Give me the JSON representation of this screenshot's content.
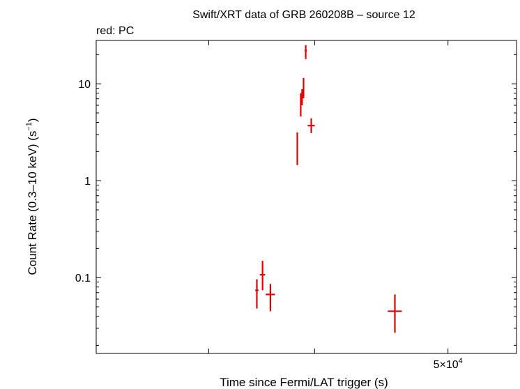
{
  "chart_data": {
    "type": "scatter",
    "title": "Swift/XRT data of GRB 260208B – source 12",
    "subtitle": "red: PC",
    "xlabel": "Time since Fermi/LAT trigger (s)",
    "ylabel": "Count Rate (0.3–10 keV) (s",
    "ylabel_sup": "−1",
    "ylabel_close": ")",
    "x_scale": "log",
    "y_scale": "log",
    "xlim": [
      13000,
      65000
    ],
    "ylim": [
      0.0165,
      28
    ],
    "x_tick_labels": [
      {
        "value": 50000,
        "label": "5×10",
        "sup": "4"
      }
    ],
    "x_minor_ticks": [
      20000,
      30000,
      50000
    ],
    "y_ticks": [
      {
        "value": 0.1,
        "label": "0.1"
      },
      {
        "value": 1,
        "label": "1"
      },
      {
        "value": 10,
        "label": "10"
      }
    ],
    "series": [
      {
        "color": "#e00000",
        "points": [
          {
            "x": 24050,
            "y": 0.074,
            "xerr": [
              150,
              150
            ],
            "yerr": [
              0.026,
              0.022
            ]
          },
          {
            "x": 24580,
            "y": 0.107,
            "xerr": [
              250,
              250
            ],
            "yerr": [
              0.033,
              0.042
            ]
          },
          {
            "x": 25330,
            "y": 0.067,
            "xerr": [
              450,
              450
            ],
            "yerr": [
              0.022,
              0.019
            ]
          },
          {
            "x": 28080,
            "y": 2.4,
            "xerr": [
              80,
              80
            ],
            "yerr": [
              0.95,
              0.75
            ]
          },
          {
            "x": 28450,
            "y": 6.4,
            "xerr": [
              60,
              60
            ],
            "yerr": [
              1.8,
              1.6
            ]
          },
          {
            "x": 28600,
            "y": 7.6,
            "xerr": [
              50,
              50
            ],
            "yerr": [
              1.6,
              1.2
            ]
          },
          {
            "x": 28760,
            "y": 9.1,
            "xerr": [
              50,
              50
            ],
            "yerr": [
              2.0,
              2.4
            ]
          },
          {
            "x": 29000,
            "y": 22,
            "xerr": [
              120,
              120
            ],
            "yerr": [
              4.0,
              3.0
            ]
          },
          {
            "x": 29620,
            "y": 3.7,
            "xerr": [
              400,
              400
            ],
            "yerr": [
              0.6,
              0.7
            ]
          },
          {
            "x": 40800,
            "y": 0.045,
            "xerr": [
              1100,
              1100
            ],
            "yerr": [
              0.018,
              0.022
            ]
          }
        ]
      }
    ]
  }
}
